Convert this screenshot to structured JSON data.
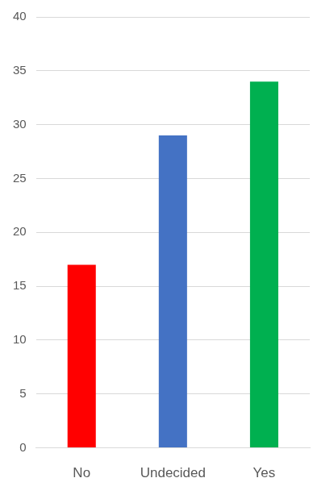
{
  "chart_data": {
    "type": "bar",
    "categories": [
      "No",
      "Undecided",
      "Yes"
    ],
    "values": [
      17,
      29,
      34
    ],
    "colors": [
      "#ff0000",
      "#4472c4",
      "#00b050"
    ],
    "ylim": [
      0,
      40
    ],
    "yticks": [
      0,
      5,
      10,
      15,
      20,
      25,
      30,
      35,
      40
    ],
    "grid": true
  }
}
